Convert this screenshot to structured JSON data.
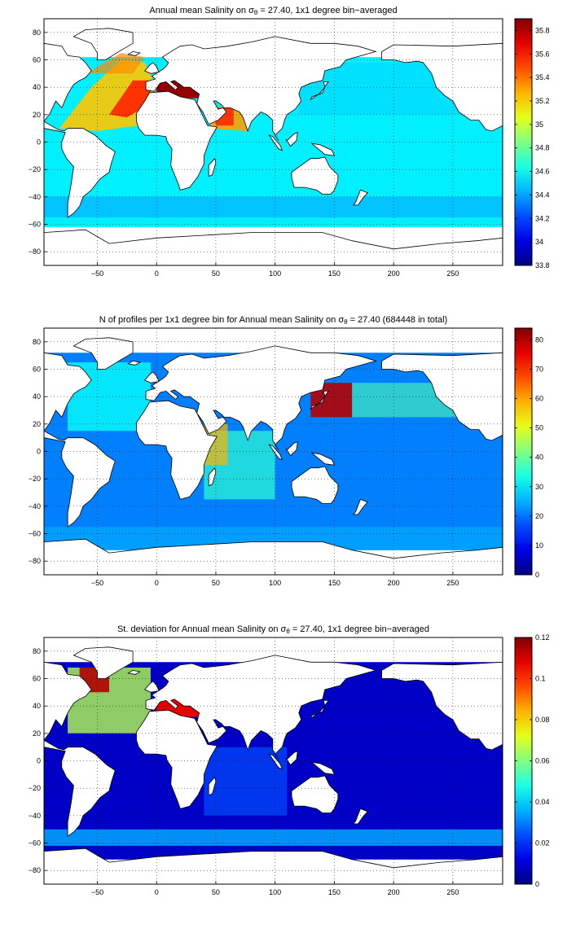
{
  "panels": [
    {
      "title_pre": "Annual mean Salinity on ",
      "title_sym": "σ",
      "title_sub": "θ",
      "title_post": " = 27.40, 1x1 degree bin−averaged",
      "colorbar": {
        "min": 33.8,
        "max": 35.9,
        "ticks": [
          33.8,
          34,
          34.2,
          34.4,
          34.6,
          34.8,
          35,
          35.2,
          35.4,
          35.6,
          35.8
        ],
        "tick_labels": [
          "33.8",
          "34",
          "34.2",
          "34.4",
          "34.6",
          "34.8",
          "35",
          "35.2",
          "35.4",
          "35.6",
          "35.8"
        ]
      }
    },
    {
      "title_pre": "N of profiles per 1x1 degree bin for Annual mean Salinity on ",
      "title_sym": "σ",
      "title_sub": "θ",
      "title_post": " = 27.40 (684448 in total)",
      "colorbar": {
        "min": 0,
        "max": 84,
        "ticks": [
          0,
          10,
          20,
          30,
          40,
          50,
          60,
          70,
          80
        ],
        "tick_labels": [
          "0",
          "10",
          "20",
          "30",
          "40",
          "50",
          "60",
          "70",
          "80"
        ]
      }
    },
    {
      "title_pre": "St. deviation for Annual mean Salinity on ",
      "title_sym": "σ",
      "title_sub": "θ",
      "title_post": " = 27.40, 1x1 degree bin−averaged",
      "colorbar": {
        "min": 0,
        "max": 0.12,
        "ticks": [
          0,
          0.02,
          0.04,
          0.06,
          0.08,
          0.1,
          0.12
        ],
        "tick_labels": [
          "0",
          "0.02",
          "0.04",
          "0.06",
          "0.08",
          "0.1",
          "0.12"
        ]
      }
    }
  ],
  "map_axes": {
    "xlim": [
      -95,
      292
    ],
    "ylim": [
      -90,
      90
    ],
    "xticks": [
      -50,
      0,
      50,
      100,
      150,
      200,
      250
    ],
    "xtick_labels": [
      "−50",
      "0",
      "50",
      "100",
      "150",
      "200",
      "250"
    ],
    "yticks": [
      -80,
      -60,
      -40,
      -20,
      0,
      20,
      40,
      60,
      80
    ],
    "ytick_labels": [
      "−80",
      "−60",
      "−40",
      "−20",
      "0",
      "20",
      "40",
      "60",
      "80"
    ],
    "grid": true,
    "colormap": "jet"
  }
}
